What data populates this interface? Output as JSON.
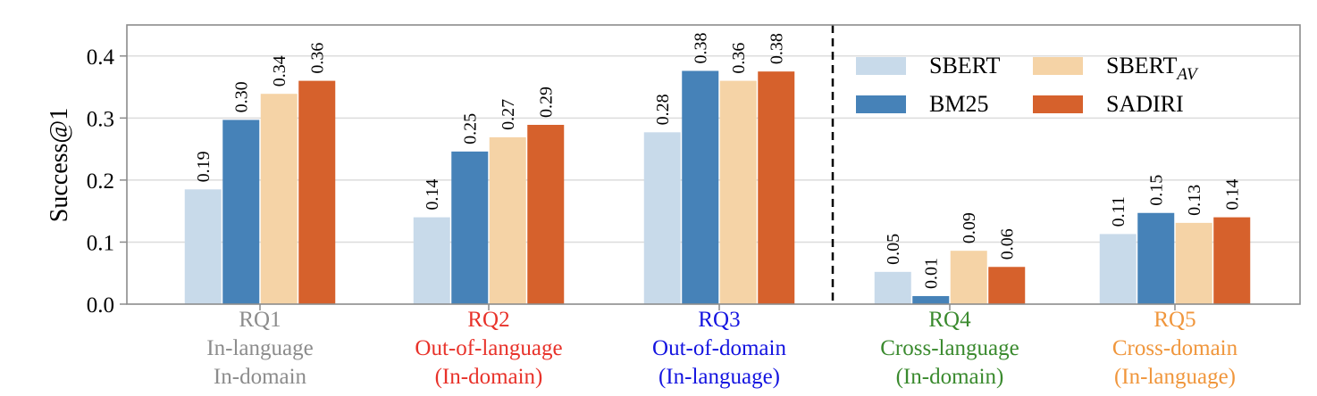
{
  "chart_data": {
    "type": "bar",
    "ylabel": "Success@1",
    "ylim": [
      0,
      0.45
    ],
    "yticks": [
      "0.0",
      "0.1",
      "0.2",
      "0.3",
      "0.4"
    ],
    "grid": true,
    "legend_position": "top-right",
    "groups": [
      {
        "lines": [
          "RQ1",
          "In-language",
          "In-domain"
        ],
        "color": "#8c8c8c"
      },
      {
        "lines": [
          "RQ2",
          "Out-of-language",
          "(In-domain)"
        ],
        "color": "#e8322a"
      },
      {
        "lines": [
          "RQ3",
          "Out-of-domain",
          "(In-language)"
        ],
        "color": "#1414e0"
      },
      {
        "lines": [
          "RQ4",
          "Cross-language",
          "(In-domain)"
        ],
        "color": "#3a8a2e"
      },
      {
        "lines": [
          "RQ5",
          "Cross-domain",
          "(In-language)"
        ],
        "color": "#f0963c"
      }
    ],
    "separator_after_group": 3,
    "series": [
      {
        "name": "SBERT",
        "color": "#c8daea",
        "values": [
          0.185,
          0.14,
          0.277,
          0.052,
          0.113
        ],
        "labels": [
          "0.19",
          "0.14",
          "0.28",
          "0.05",
          "0.11"
        ]
      },
      {
        "name": "BM25",
        "color": "#4682b8",
        "values": [
          0.297,
          0.246,
          0.376,
          0.013,
          0.147
        ],
        "labels": [
          "0.30",
          "0.25",
          "0.38",
          "0.01",
          "0.15"
        ]
      },
      {
        "name": "SBERT",
        "name_sub": "AV",
        "color": "#f5d3a6",
        "values": [
          0.339,
          0.269,
          0.36,
          0.086,
          0.131
        ],
        "labels": [
          "0.34",
          "0.27",
          "0.36",
          "0.09",
          "0.13"
        ]
      },
      {
        "name": "SADIRI",
        "color": "#d6612c",
        "values": [
          0.36,
          0.289,
          0.375,
          0.06,
          0.14
        ],
        "labels": [
          "0.36",
          "0.29",
          "0.38",
          "0.06",
          "0.14"
        ]
      }
    ]
  }
}
